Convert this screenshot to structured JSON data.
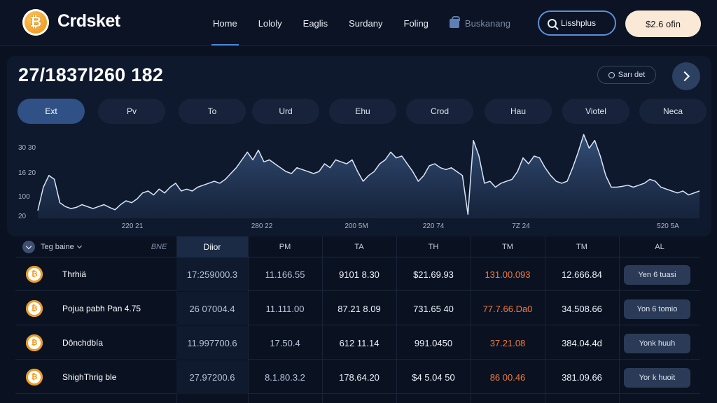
{
  "header": {
    "logo_glyph": "₿",
    "brand": "Crdsket",
    "nav": [
      "Home",
      "Lololy",
      "Eaglis",
      "Surdany",
      "Foling"
    ],
    "nav_active": 0,
    "bookmark_label": "Buskanang",
    "search_label": "Lisshplus",
    "price_button": "$2.6 ofin"
  },
  "main": {
    "headline": "27/1837l260 182",
    "badge_label": "Sarı det",
    "tabs": [
      "Ext",
      "Pv",
      "To",
      "Urd",
      "Ehu",
      "Crod",
      "Hau",
      "Viotel",
      "Neca"
    ],
    "active_tab": 0
  },
  "chart_data": {
    "type": "area",
    "yticks": [
      "30 30",
      "16 20",
      "100",
      "20"
    ],
    "xticks": [
      "220 21",
      "280 22",
      "200 5M",
      "220 74",
      "7Z 24",
      "520 5A"
    ],
    "x": [
      0,
      1,
      2,
      3,
      4,
      5,
      6,
      7,
      8,
      9,
      10,
      11,
      12,
      13,
      14,
      15,
      16,
      17,
      18,
      19,
      20,
      21,
      22,
      23,
      24,
      25,
      26,
      27,
      28,
      29,
      30,
      31,
      32,
      33,
      34,
      35,
      36,
      37,
      38,
      39,
      40,
      41,
      42,
      43,
      44,
      45,
      46,
      47,
      48,
      49,
      50,
      51,
      52,
      53,
      54,
      55,
      56,
      57,
      58,
      59,
      60,
      61,
      62,
      63,
      64,
      65,
      66,
      67,
      68,
      69,
      70,
      71,
      72,
      73,
      74,
      75,
      76,
      77,
      78,
      79,
      80,
      81,
      82,
      83,
      84,
      85,
      86,
      87,
      88,
      89,
      90,
      91,
      92,
      93,
      94,
      95,
      96,
      97,
      98,
      99,
      100,
      101,
      102,
      103,
      104,
      105,
      106,
      107,
      108,
      109,
      110,
      111,
      112,
      113,
      114,
      115,
      116,
      117,
      118,
      119,
      120
    ],
    "y": [
      20,
      80,
      110,
      100,
      40,
      30,
      25,
      28,
      35,
      30,
      25,
      30,
      35,
      28,
      22,
      35,
      45,
      40,
      50,
      65,
      70,
      60,
      75,
      65,
      80,
      90,
      70,
      75,
      70,
      80,
      85,
      90,
      95,
      90,
      100,
      115,
      130,
      150,
      170,
      150,
      175,
      145,
      150,
      140,
      130,
      120,
      115,
      130,
      125,
      120,
      115,
      120,
      140,
      130,
      150,
      145,
      140,
      150,
      120,
      95,
      110,
      120,
      140,
      150,
      170,
      155,
      160,
      140,
      120,
      95,
      110,
      135,
      140,
      130,
      125,
      130,
      120,
      110,
      10,
      200,
      160,
      90,
      95,
      80,
      90,
      95,
      100,
      120,
      155,
      140,
      160,
      155,
      130,
      110,
      95,
      90,
      95,
      130,
      170,
      215,
      180,
      200,
      160,
      110,
      80,
      80,
      82,
      85,
      80,
      85,
      90,
      100,
      95,
      80,
      75,
      70,
      65,
      70,
      60,
      65,
      70
    ],
    "ylim": [
      0,
      230
    ],
    "grid": false
  },
  "table": {
    "columns": [
      "Teg baine",
      "BNE",
      "Diior",
      "PM",
      "TA",
      "TH",
      "TM",
      "TM",
      "AL"
    ],
    "highlight_column": 2,
    "rows": [
      {
        "name": "Thrhiä",
        "c1": "17:259000.3",
        "c2": "11.166.55",
        "c3": "9101 8.30",
        "c4": "$21.69.93",
        "c5": "131.00.093",
        "c6": "12.666.84",
        "action": "Yen 6 tuasi",
        "neg": true
      },
      {
        "name": "Pojua pabh Pan 4.75",
        "c1": "26 07004.4",
        "c2": "11.111.00",
        "c3": "87.21 8.09",
        "c4": "731.65 40",
        "c5": "77.7.66.Da0",
        "c6": "34.508.66",
        "action": "Yon 6 tomio",
        "neg": true
      },
      {
        "name": "Dônchdbía",
        "c1": "11.997700.6",
        "c2": "17.50.4",
        "c3": "612 11.14",
        "c4": "991.0450",
        "c5": "37.21.08",
        "c6": "384.04.4d",
        "action": "Yonk huuh",
        "neg": true
      },
      {
        "name": "ShighThrig ble",
        "c1": "27.97200.6",
        "c2": "8.1.80.3.2",
        "c3": "178.64.20",
        "c4": "$4 5.04 50",
        "c5": "86 00.46",
        "c6": "381.09.66",
        "action": "Yor k huoit",
        "neg": true
      }
    ]
  },
  "colors": {
    "accent": "#4a86d9",
    "negative": "#f07a3a",
    "background": "#0a1222"
  }
}
